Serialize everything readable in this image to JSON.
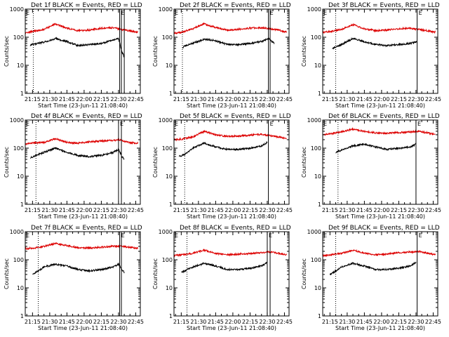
{
  "chart_data": [
    {
      "type": "line",
      "title": "Det 1f BLACK = Events, RED = LLD",
      "ylabel": "Counts/sec",
      "xlabel": "Start Time (23-Jun-11 21:08:40)",
      "x_ticks": [
        "21:15",
        "21:30",
        "21:45",
        "22:00",
        "22:15",
        "22:30",
        "22:45"
      ],
      "y_ticks": [
        "1",
        "10",
        "100",
        "1000"
      ],
      "x_range": [
        "21:08:40",
        "22:49"
      ],
      "ylim": [
        1,
        1000
      ],
      "y_scale": "log",
      "markers": {
        "dotted": [
          "21:15:40"
        ],
        "solid": [
          "22:31",
          "22:32:30",
          "22:35"
        ]
      },
      "annotation": "E",
      "series": [
        {
          "name": "RED",
          "color": "#dd0000",
          "x": [
            "21:08:40",
            "21:15",
            "21:25",
            "21:35",
            "21:45",
            "21:55",
            "22:05",
            "22:15",
            "22:25",
            "22:32",
            "22:40",
            "22:47"
          ],
          "y": [
            140,
            160,
            190,
            300,
            210,
            170,
            180,
            210,
            220,
            190,
            170,
            150
          ]
        },
        {
          "name": "BLACK",
          "color": "#000000",
          "x": [
            "21:13",
            "21:15",
            "21:20",
            "21:27",
            "21:35",
            "21:45",
            "21:55",
            "22:05",
            "22:15",
            "22:25",
            "22:30",
            "22:33",
            "22:35"
          ],
          "y": [
            50,
            55,
            60,
            70,
            90,
            70,
            50,
            55,
            60,
            80,
            90,
            30,
            20
          ]
        }
      ]
    },
    {
      "type": "line",
      "title": "Det 2f BLACK = Events, RED = LLD",
      "ylabel": "Counts/sec",
      "xlabel": "Start Time (23-Jun-11 21:08:40)",
      "x_ticks": [
        "21:15",
        "21:30",
        "21:45",
        "22:00",
        "22:15",
        "22:30",
        "22:45"
      ],
      "y_ticks": [
        "1",
        "10",
        "100",
        "1000"
      ],
      "x_range": [
        "21:08:40",
        "22:49"
      ],
      "ylim": [
        1,
        1000
      ],
      "y_scale": "log",
      "markers": {
        "dotted": [
          "21:16"
        ],
        "solid": [
          "22:31",
          "22:32:30"
        ]
      },
      "annotation": "E",
      "series": [
        {
          "name": "RED",
          "color": "#dd0000",
          "x": [
            "21:08:40",
            "21:15",
            "21:25",
            "21:35",
            "21:45",
            "21:55",
            "22:05",
            "22:15",
            "22:25",
            "22:32",
            "22:40",
            "22:47"
          ],
          "y": [
            140,
            150,
            200,
            300,
            220,
            180,
            190,
            210,
            220,
            200,
            180,
            150
          ]
        },
        {
          "name": "BLACK",
          "color": "#000000",
          "x": [
            "21:16",
            "21:18",
            "21:25",
            "21:35",
            "21:45",
            "21:55",
            "22:05",
            "22:15",
            "22:25",
            "22:31",
            "22:33",
            "22:36"
          ],
          "y": [
            40,
            50,
            60,
            85,
            75,
            55,
            55,
            60,
            70,
            90,
            80,
            60
          ]
        }
      ]
    },
    {
      "type": "line",
      "title": "Det 3f BLACK = Events, RED = LLD",
      "ylabel": "Counts/sec",
      "xlabel": "Start Time (23-Jun-11 21:08:40)",
      "x_ticks": [
        "21:15",
        "21:30",
        "21:45",
        "22:00",
        "22:15",
        "22:30",
        "22:45"
      ],
      "y_ticks": [
        "1",
        "10",
        "100",
        "1000"
      ],
      "x_range": [
        "21:08:40",
        "22:49"
      ],
      "ylim": [
        1,
        1000
      ],
      "y_scale": "log",
      "markers": {
        "dotted": [
          "21:20"
        ],
        "solid": [
          "22:31"
        ]
      },
      "annotation": "E",
      "series": [
        {
          "name": "RED",
          "color": "#dd0000",
          "x": [
            "21:08:40",
            "21:15",
            "21:25",
            "21:35",
            "21:45",
            "21:55",
            "22:05",
            "22:15",
            "22:25",
            "22:32",
            "22:40",
            "22:47"
          ],
          "y": [
            150,
            160,
            190,
            280,
            200,
            170,
            180,
            200,
            210,
            190,
            170,
            150
          ]
        },
        {
          "name": "BLACK",
          "color": "#000000",
          "x": [
            "21:17",
            "21:20",
            "21:25",
            "21:35",
            "21:45",
            "21:55",
            "22:05",
            "22:15",
            "22:25",
            "22:31"
          ],
          "y": [
            40,
            45,
            55,
            90,
            70,
            55,
            50,
            55,
            60,
            70
          ]
        }
      ]
    },
    {
      "type": "line",
      "title": "Det 4f BLACK = Events, RED = LLD",
      "ylabel": "Counts/sec",
      "xlabel": "Start Time (23-Jun-11 21:08:40)",
      "x_ticks": [
        "21:15",
        "21:30",
        "21:45",
        "22:00",
        "22:15",
        "22:30",
        "22:45"
      ],
      "y_ticks": [
        "1",
        "10",
        "100",
        "1000"
      ],
      "x_range": [
        "21:08:40",
        "22:49"
      ],
      "ylim": [
        1,
        1000
      ],
      "y_scale": "log",
      "markers": {
        "dotted": [
          "21:18"
        ],
        "solid": [
          "22:30",
          "22:32:30"
        ]
      },
      "annotation": "E",
      "series": [
        {
          "name": "RED",
          "color": "#dd0000",
          "x": [
            "21:08:40",
            "21:15",
            "21:25",
            "21:35",
            "21:45",
            "21:55",
            "22:05",
            "22:15",
            "22:25",
            "22:30",
            "22:40",
            "22:47"
          ],
          "y": [
            140,
            150,
            160,
            220,
            160,
            150,
            170,
            180,
            190,
            200,
            160,
            150
          ]
        },
        {
          "name": "BLACK",
          "color": "#000000",
          "x": [
            "21:13",
            "21:18",
            "21:25",
            "21:35",
            "21:45",
            "21:55",
            "22:05",
            "22:15",
            "22:25",
            "22:30",
            "22:33",
            "22:35"
          ],
          "y": [
            45,
            55,
            70,
            100,
            70,
            55,
            50,
            55,
            70,
            90,
            50,
            40
          ]
        }
      ]
    },
    {
      "type": "line",
      "title": "Det 5f BLACK = Events, RED = LLD",
      "ylabel": "Counts/sec",
      "xlabel": "Start Time (23-Jun-11 21:08:40)",
      "x_ticks": [
        "21:15",
        "21:30",
        "21:45",
        "22:00",
        "22:15",
        "22:30",
        "22:45"
      ],
      "y_ticks": [
        "1",
        "10",
        "100",
        "1000"
      ],
      "x_range": [
        "21:08:40",
        "22:49"
      ],
      "ylim": [
        1,
        1000
      ],
      "y_scale": "log",
      "markers": {
        "dotted": [
          "21:18"
        ],
        "solid": [
          "22:31"
        ]
      },
      "annotation": "E",
      "series": [
        {
          "name": "RED",
          "color": "#dd0000",
          "x": [
            "21:08:40",
            "21:15",
            "21:25",
            "21:35",
            "21:45",
            "21:55",
            "22:05",
            "22:15",
            "22:25",
            "22:32",
            "22:40",
            "22:47"
          ],
          "y": [
            200,
            210,
            250,
            400,
            300,
            260,
            270,
            290,
            310,
            280,
            250,
            220
          ]
        },
        {
          "name": "BLACK",
          "color": "#000000",
          "x": [
            "21:13",
            "21:18",
            "21:25",
            "21:35",
            "21:45",
            "21:55",
            "22:05",
            "22:15",
            "22:25",
            "22:30"
          ],
          "y": [
            50,
            60,
            100,
            150,
            110,
            90,
            90,
            100,
            120,
            160
          ]
        }
      ]
    },
    {
      "type": "line",
      "title": "Det 6f BLACK = Events, RED = LLD",
      "ylabel": "Counts/sec",
      "xlabel": "Start Time (23-Jun-11 21:08:40)",
      "x_ticks": [
        "21:15",
        "21:30",
        "21:45",
        "22:00",
        "22:15",
        "22:30",
        "22:45"
      ],
      "y_ticks": [
        "1",
        "10",
        "100",
        "1000"
      ],
      "x_range": [
        "21:08:40",
        "22:49"
      ],
      "ylim": [
        1,
        1000
      ],
      "y_scale": "log",
      "markers": {
        "dotted": [
          "21:22"
        ],
        "solid": [
          "22:30"
        ]
      },
      "annotation": "E",
      "series": [
        {
          "name": "RED",
          "color": "#dd0000",
          "x": [
            "21:08:40",
            "21:15",
            "21:25",
            "21:35",
            "21:45",
            "21:55",
            "22:05",
            "22:15",
            "22:25",
            "22:32",
            "22:40",
            "22:47"
          ],
          "y": [
            300,
            320,
            380,
            480,
            400,
            350,
            340,
            360,
            380,
            400,
            350,
            300
          ]
        },
        {
          "name": "BLACK",
          "color": "#000000",
          "x": [
            "21:20",
            "21:25",
            "21:35",
            "21:45",
            "21:55",
            "22:05",
            "22:15",
            "22:25",
            "22:30"
          ],
          "y": [
            70,
            85,
            120,
            140,
            110,
            90,
            100,
            110,
            140
          ]
        }
      ]
    },
    {
      "type": "line",
      "title": "Det 7f BLACK = Events, RED = LLD",
      "ylabel": "Counts/sec",
      "xlabel": "Start Time (23-Jun-11 21:08:40)",
      "x_ticks": [
        "21:15",
        "21:30",
        "21:45",
        "22:00",
        "22:15",
        "22:30",
        "22:45"
      ],
      "y_ticks": [
        "1",
        "10",
        "100",
        "1000"
      ],
      "x_range": [
        "21:08:40",
        "22:49"
      ],
      "ylim": [
        1,
        1000
      ],
      "y_scale": "log",
      "markers": {
        "dotted": [
          "21:20"
        ],
        "solid": [
          "22:31",
          "22:32:30"
        ]
      },
      "annotation": "E",
      "series": [
        {
          "name": "RED",
          "color": "#dd0000",
          "x": [
            "21:08:40",
            "21:15",
            "21:25",
            "21:35",
            "21:45",
            "21:55",
            "22:05",
            "22:15",
            "22:25",
            "22:32",
            "22:40",
            "22:47"
          ],
          "y": [
            250,
            260,
            300,
            380,
            320,
            270,
            260,
            280,
            300,
            310,
            280,
            250
          ]
        },
        {
          "name": "BLACK",
          "color": "#000000",
          "x": [
            "21:15",
            "21:20",
            "21:25",
            "21:35",
            "21:45",
            "21:55",
            "22:05",
            "22:15",
            "22:25",
            "22:30",
            "22:33",
            "22:35"
          ],
          "y": [
            30,
            40,
            55,
            70,
            60,
            45,
            40,
            45,
            55,
            70,
            45,
            35
          ]
        }
      ]
    },
    {
      "type": "line",
      "title": "Det 8f BLACK = Events, RED = LLD",
      "ylabel": "Counts/sec",
      "xlabel": "Start Time (23-Jun-11 21:08:40)",
      "x_ticks": [
        "21:15",
        "21:30",
        "21:45",
        "22:00",
        "22:15",
        "22:30",
        "22:45"
      ],
      "y_ticks": [
        "1",
        "10",
        "100",
        "1000"
      ],
      "x_range": [
        "21:08:40",
        "22:49"
      ],
      "ylim": [
        1,
        1000
      ],
      "y_scale": "log",
      "markers": {
        "dotted": [
          "21:20"
        ],
        "solid": [
          "22:30",
          "22:32:30"
        ]
      },
      "annotation": "E",
      "series": [
        {
          "name": "RED",
          "color": "#dd0000",
          "x": [
            "21:08:40",
            "21:15",
            "21:25",
            "21:35",
            "21:45",
            "21:55",
            "22:05",
            "22:15",
            "22:25",
            "22:32",
            "22:40",
            "22:47"
          ],
          "y": [
            140,
            150,
            170,
            220,
            170,
            150,
            160,
            170,
            180,
            190,
            170,
            150
          ]
        },
        {
          "name": "BLACK",
          "color": "#000000",
          "x": [
            "21:15",
            "21:20",
            "21:25",
            "21:35",
            "21:45",
            "21:55",
            "22:05",
            "22:15",
            "22:25",
            "22:30"
          ],
          "y": [
            35,
            45,
            55,
            75,
            60,
            45,
            45,
            50,
            60,
            80
          ]
        }
      ]
    },
    {
      "type": "line",
      "title": "Det 9f BLACK = Events, RED = LLD",
      "ylabel": "Counts/sec",
      "xlabel": "Start Time (23-Jun-11 21:08:40)",
      "x_ticks": [
        "21:15",
        "21:30",
        "21:45",
        "22:00",
        "22:15",
        "22:30",
        "22:45"
      ],
      "y_ticks": [
        "1",
        "10",
        "100",
        "1000"
      ],
      "x_range": [
        "21:08:40",
        "22:49"
      ],
      "ylim": [
        1,
        1000
      ],
      "y_scale": "log",
      "markers": {
        "dotted": [
          "21:20"
        ],
        "solid": [
          "22:31"
        ]
      },
      "annotation": "E",
      "series": [
        {
          "name": "RED",
          "color": "#dd0000",
          "x": [
            "21:08:40",
            "21:15",
            "21:25",
            "21:35",
            "21:45",
            "21:55",
            "22:05",
            "22:15",
            "22:25",
            "22:32",
            "22:40",
            "22:47"
          ],
          "y": [
            140,
            150,
            170,
            220,
            170,
            150,
            160,
            180,
            190,
            200,
            170,
            150
          ]
        },
        {
          "name": "BLACK",
          "color": "#000000",
          "x": [
            "21:15",
            "21:20",
            "21:25",
            "21:35",
            "21:45",
            "21:55",
            "22:05",
            "22:15",
            "22:25",
            "22:30"
          ],
          "y": [
            30,
            40,
            55,
            75,
            60,
            45,
            45,
            50,
            60,
            80
          ]
        }
      ]
    }
  ]
}
